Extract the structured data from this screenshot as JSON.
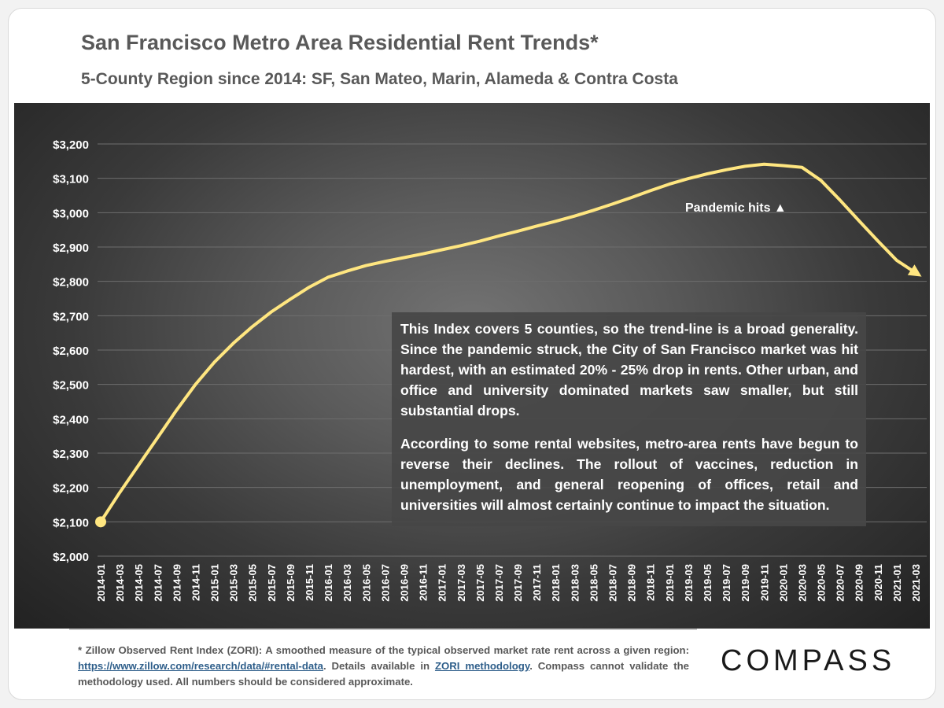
{
  "header": {
    "title": "San Francisco Metro Area Residential Rent Trends*",
    "subtitle": "5-County Region since 2014: SF, San Mateo, Marin, Alameda & Contra Costa"
  },
  "note": {
    "paragraph1": "This Index covers 5 counties, so the trend-line is a broad generality. Since the pandemic struck, the City of San Francisco market was hit hardest, with an estimated 20% - 25% drop in rents. Other urban, and office and university dominated markets saw smaller, but still substantial drops.",
    "paragraph2": "According to some rental websites, metro-area rents have begun to reverse their declines. The rollout of vaccines, reduction in unemployment, and general reopening of offices, retail and universities will almost certainly continue to impact the situation."
  },
  "annotation": {
    "text": "Pandemic hits ▲"
  },
  "footnote": {
    "part1": "* Zillow Observed Rent Index (ZORI): A smoothed measure of the typical observed market rate rent across a given region: ",
    "link1": "https://www.zillow.com/research/data/#rental-data",
    "part2": ". Details available in ",
    "link2": "ZORI methodology",
    "part3": ". Compass cannot validate the methodology used. All numbers should be considered approximate."
  },
  "brand": {
    "logo_text": "COMPASS"
  },
  "colors": {
    "line": "#ffe680",
    "grid": "#6e6e6e",
    "text": "#ffffff",
    "title": "#595959"
  },
  "chart_data": {
    "type": "line",
    "title": "San Francisco Metro Area Residential Rent Trends*",
    "xlabel": "",
    "ylabel": "",
    "ylim": [
      2000,
      3200
    ],
    "yticks": [
      2000,
      2100,
      2200,
      2300,
      2400,
      2500,
      2600,
      2700,
      2800,
      2900,
      3000,
      3100,
      3200
    ],
    "ytick_labels": [
      "$2,000",
      "$2,100",
      "$2,200",
      "$2,300",
      "$2,400",
      "$2,500",
      "$2,600",
      "$2,700",
      "$2,800",
      "$2,900",
      "$3,000",
      "$3,100",
      "$3,200"
    ],
    "grid": true,
    "legend": "none",
    "categories": [
      "2014-01",
      "2014-03",
      "2014-05",
      "2014-07",
      "2014-09",
      "2014-11",
      "2015-01",
      "2015-03",
      "2015-05",
      "2015-07",
      "2015-09",
      "2015-11",
      "2016-01",
      "2016-03",
      "2016-05",
      "2016-07",
      "2016-09",
      "2016-11",
      "2017-01",
      "2017-03",
      "2017-05",
      "2017-07",
      "2017-09",
      "2017-11",
      "2018-01",
      "2018-03",
      "2018-05",
      "2018-07",
      "2018-09",
      "2018-11",
      "2019-01",
      "2019-03",
      "2019-05",
      "2019-07",
      "2019-09",
      "2019-11",
      "2020-01",
      "2020-03",
      "2020-05",
      "2020-07",
      "2020-09",
      "2020-11",
      "2021-01",
      "2021-03"
    ],
    "series": [
      {
        "values": [
          2100,
          2185,
          2265,
          2345,
          2425,
          2500,
          2565,
          2620,
          2668,
          2711,
          2748,
          2783,
          2812,
          2830,
          2846,
          2858,
          2869,
          2880,
          2892,
          2904,
          2917,
          2932,
          2946,
          2961,
          2975,
          2990,
          3007,
          3025,
          3044,
          3064,
          3083,
          3099,
          3113,
          3125,
          3135,
          3141,
          3137,
          3132,
          3094,
          3037,
          2977,
          2918,
          2861,
          2825
        ]
      }
    ]
  }
}
